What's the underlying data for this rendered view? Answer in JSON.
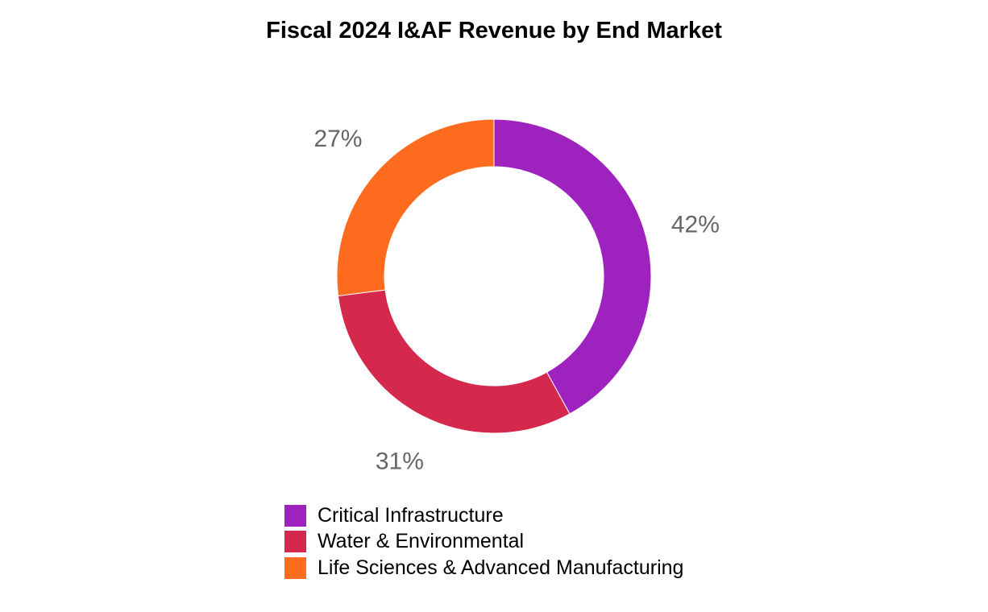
{
  "chart_data": {
    "type": "pie",
    "subtype": "donut",
    "title": "Fiscal 2024 I&AF Revenue by End Market",
    "categories": [
      "Critical Infrastructure",
      "Water & Environmental",
      "Life Sciences & Advanced Manufacturing"
    ],
    "values": [
      42,
      31,
      27
    ],
    "labels": [
      "42%",
      "31%",
      "27%"
    ],
    "unit": "%",
    "colors": [
      "#9E22BE",
      "#D4284D",
      "#FF6B1F"
    ],
    "label_color": "#666666",
    "legend_position": "bottom"
  }
}
